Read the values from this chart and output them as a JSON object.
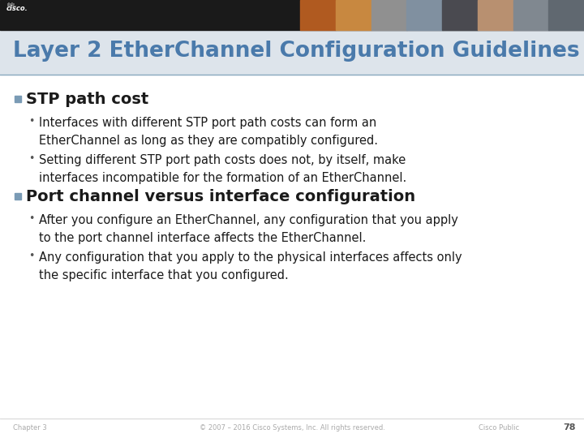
{
  "title": "Layer 2 EtherChannel Configuration Guidelines",
  "title_color": "#4a7aab",
  "title_fontsize": 19,
  "header_bg": "#1a1a1a",
  "slide_bg": "#ffffff",
  "title_bar_bg": "#dde4eb",
  "section1_heading": "STP path cost",
  "section1_bullet1": "Interfaces with different STP port path costs can form an\nEtherChannel as long as they are compatibly configured.",
  "section1_bullet2": "Setting different STP port path costs does not, by itself, make\ninterfaces incompatible for the formation of an EtherChannel.",
  "section2_heading": "Port channel versus interface configuration",
  "section2_bullet1": "After you configure an EtherChannel, any configuration that you apply\nto the port channel interface affects the EtherChannel.",
  "section2_bullet2": "Any configuration that you apply to the physical interfaces affects only\nthe specific interface that you configured.",
  "section_heading_color": "#1a1a1a",
  "section_heading_fontsize": 14,
  "bullet_color": "#1a1a1a",
  "bullet_fontsize": 10.5,
  "square_bullet_color": "#7a9bb5",
  "footer_text_color": "#aaaaaa",
  "footer_left": "Chapter 3",
  "footer_center": "© 2007 – 2016 Cisco Systems, Inc. All rights reserved.",
  "footer_right_extra": "Cisco Public",
  "page_number": "78",
  "header_line_color": "#8aaabf",
  "divider_color": "#cccccc",
  "photo_colors": [
    "#b05a20",
    "#c88840",
    "#909090",
    "#8090a0",
    "#4a4a50",
    "#b89070",
    "#808890",
    "#606870"
  ]
}
